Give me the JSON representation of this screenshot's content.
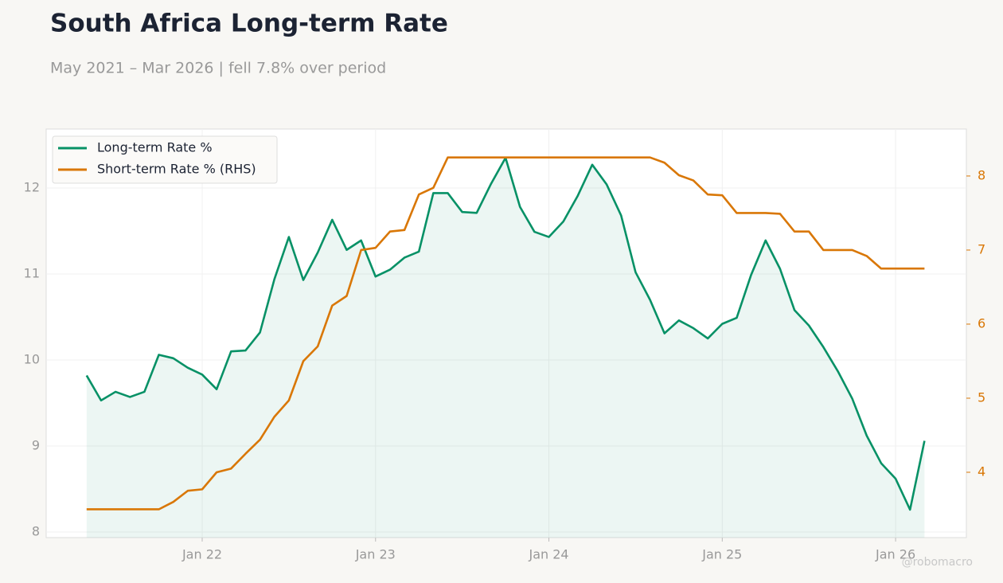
{
  "chart_data": {
    "type": "line",
    "title": "South Africa Long-term Rate",
    "subtitle": "May 2021 – Mar 2026 | fell 7.8% over period",
    "watermark": "@robomacro",
    "x": [
      "2021-05",
      "2021-06",
      "2021-07",
      "2021-08",
      "2021-09",
      "2021-10",
      "2021-11",
      "2021-12",
      "2022-01",
      "2022-02",
      "2022-03",
      "2022-04",
      "2022-05",
      "2022-06",
      "2022-07",
      "2022-08",
      "2022-09",
      "2022-10",
      "2022-11",
      "2022-12",
      "2023-01",
      "2023-02",
      "2023-03",
      "2023-04",
      "2023-05",
      "2023-06",
      "2023-07",
      "2023-08",
      "2023-09",
      "2023-10",
      "2023-11",
      "2023-12",
      "2024-01",
      "2024-02",
      "2024-03",
      "2024-04",
      "2024-05",
      "2024-06",
      "2024-07",
      "2024-08",
      "2024-09",
      "2024-10",
      "2024-11",
      "2024-12",
      "2025-01",
      "2025-02",
      "2025-03",
      "2025-04",
      "2025-05",
      "2025-06",
      "2025-07",
      "2025-08",
      "2025-09",
      "2025-10",
      "2025-11",
      "2025-12",
      "2026-01",
      "2026-02",
      "2026-03"
    ],
    "series": [
      {
        "name": "Long-term Rate %",
        "color": "#079166",
        "area": true,
        "values": [
          9.82,
          9.53,
          9.63,
          9.57,
          9.63,
          10.06,
          10.02,
          9.91,
          9.83,
          9.66,
          10.1,
          10.11,
          10.32,
          10.94,
          11.43,
          10.93,
          11.25,
          11.63,
          11.28,
          11.39,
          10.97,
          11.05,
          11.19,
          11.26,
          11.94,
          11.94,
          11.72,
          11.71,
          12.05,
          12.35,
          11.78,
          11.49,
          11.43,
          11.61,
          11.91,
          12.27,
          12.04,
          11.68,
          11.02,
          10.7,
          10.31,
          10.46,
          10.37,
          10.25,
          10.42,
          10.49,
          10.99,
          11.39,
          11.06,
          10.58,
          10.4,
          10.15,
          9.87,
          9.55,
          9.12,
          8.8,
          8.62,
          8.26,
          9.06
        ]
      },
      {
        "name": "Short-term Rate % (RHS)",
        "color": "#d97706",
        "axis": "y2",
        "values": [
          3.5,
          3.5,
          3.5,
          3.5,
          3.5,
          3.5,
          3.6,
          3.75,
          3.77,
          4.0,
          4.05,
          4.25,
          4.44,
          4.75,
          4.97,
          5.5,
          5.7,
          6.25,
          6.38,
          7.0,
          7.03,
          7.25,
          7.27,
          7.75,
          7.84,
          8.25,
          8.25,
          8.25,
          8.25,
          8.25,
          8.25,
          8.25,
          8.25,
          8.25,
          8.25,
          8.25,
          8.25,
          8.25,
          8.25,
          8.25,
          8.18,
          8.01,
          7.94,
          7.75,
          7.74,
          7.5,
          7.5,
          7.5,
          7.49,
          7.25,
          7.25,
          7.0,
          7.0,
          7.0,
          6.92,
          6.75,
          6.75,
          6.75,
          6.75
        ]
      }
    ],
    "xlim": [
      "2021-02-07",
      "2026-05-28"
    ],
    "xticks": [
      {
        "value": "2022-01",
        "label": "Jan 22"
      },
      {
        "value": "2023-01",
        "label": "Jan 23"
      },
      {
        "value": "2024-01",
        "label": "Jan 24"
      },
      {
        "value": "2025-01",
        "label": "Jan 25"
      },
      {
        "value": "2026-01",
        "label": "Jan 26"
      }
    ],
    "ylim": [
      7.935,
      12.685
    ],
    "yticks": [
      8,
      9,
      10,
      11,
      12
    ],
    "y2lim": [
      3.118,
      8.634
    ],
    "y2ticks": [
      4,
      5,
      6,
      7,
      8
    ],
    "grid": true,
    "legend": "upper left"
  }
}
